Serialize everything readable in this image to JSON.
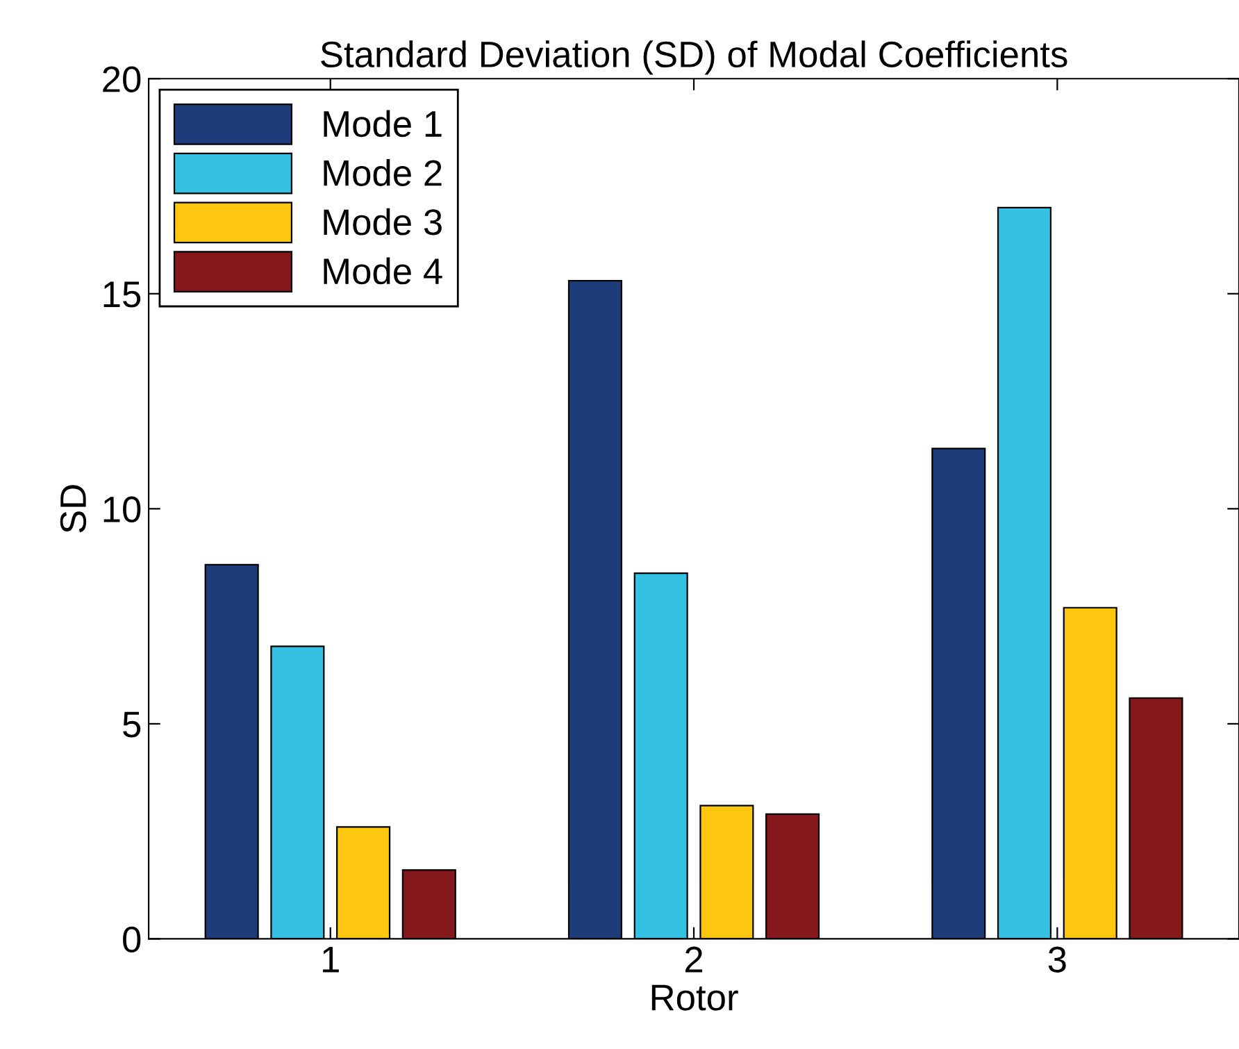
{
  "chart_data": {
    "type": "bar",
    "title": "Standard Deviation (SD) of Modal Coefficients",
    "xlabel": "Rotor",
    "ylabel": "SD",
    "categories": [
      "1",
      "2",
      "3"
    ],
    "series": [
      {
        "name": "Mode 1",
        "color": "#1f3c7a",
        "values": [
          8.7,
          15.3,
          11.4
        ]
      },
      {
        "name": "Mode 2",
        "color": "#35c2e2",
        "values": [
          6.8,
          8.5,
          17.0
        ]
      },
      {
        "name": "Mode 3",
        "color": "#fdc70f",
        "values": [
          2.6,
          3.1,
          7.7
        ]
      },
      {
        "name": "Mode 4",
        "color": "#85181a",
        "values": [
          1.6,
          2.9,
          5.6
        ]
      }
    ],
    "ylim": [
      0,
      20
    ],
    "yticks": [
      0,
      5,
      10,
      15,
      20
    ],
    "grid": false,
    "legend": "top left"
  }
}
